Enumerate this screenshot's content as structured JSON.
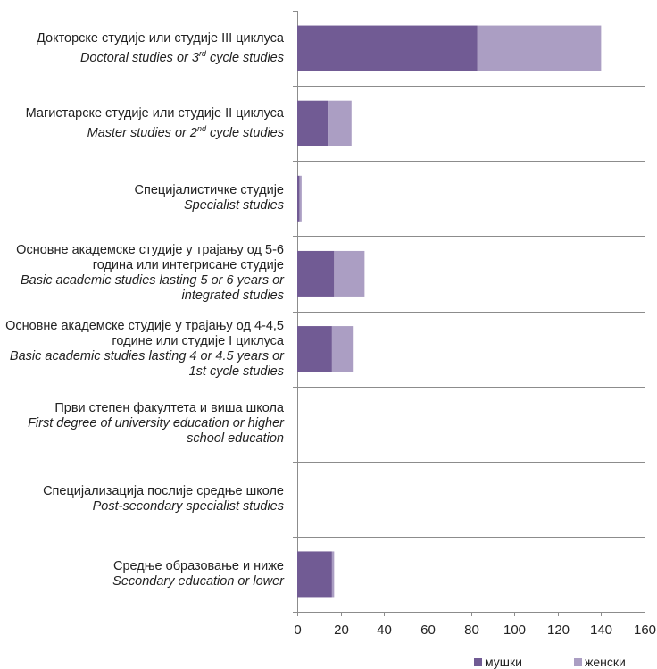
{
  "chart_data": {
    "type": "bar",
    "orientation": "horizontal",
    "stacked": true,
    "categories": [
      {
        "sr": "Докторске студије или студије III циклуса",
        "en_pre": "Doctoral studies or 3",
        "en_sup": "rd",
        "en_post": " cycle studies"
      },
      {
        "sr": "Магистарске студије или студије II циклуса",
        "en_pre": "Master studies or 2",
        "en_sup": "nd",
        "en_post": " cycle studies"
      },
      {
        "sr": "Специјалистичке студије",
        "en_pre": "Specialist studies",
        "en_sup": "",
        "en_post": ""
      },
      {
        "sr": "Основне академске студије у трајању од 5-6 година или интегрисане студије",
        "en_pre": "Basic academic studies lasting 5 or 6 years or integrated studies",
        "en_sup": "",
        "en_post": ""
      },
      {
        "sr": "Основне академске студије у трајању од 4-4,5 године или студије I циклуса",
        "en_pre": "Basic academic studies lasting 4 or 4.5 years or 1st cycle studies",
        "en_sup": "",
        "en_post": ""
      },
      {
        "sr": "Први степен факултета и виша школа",
        "en_pre": "First degree of university education or higher school education",
        "en_sup": "",
        "en_post": ""
      },
      {
        "sr": "Специјализација послије средње школе",
        "en_pre": "Post-secondary specialist studies",
        "en_sup": "",
        "en_post": ""
      },
      {
        "sr": "Средње образовање и ниже",
        "en_pre": "Secondary education or lower",
        "en_sup": "",
        "en_post": ""
      }
    ],
    "series": [
      {
        "name": "мушки",
        "color": "#715b94",
        "values": [
          83,
          14,
          1,
          17,
          16,
          0,
          0,
          16
        ]
      },
      {
        "name": "женски",
        "color": "#ab9ec3",
        "values": [
          57,
          11,
          1,
          14,
          10,
          0,
          0,
          1
        ]
      }
    ],
    "xlim": [
      0,
      160
    ],
    "xticks": [
      "0",
      "20",
      "40",
      "60",
      "80",
      "100",
      "120",
      "140",
      "160"
    ],
    "grid": "horizontal separators between categories",
    "legend": "bottom-right",
    "title": "",
    "xlabel": "",
    "ylabel": ""
  }
}
